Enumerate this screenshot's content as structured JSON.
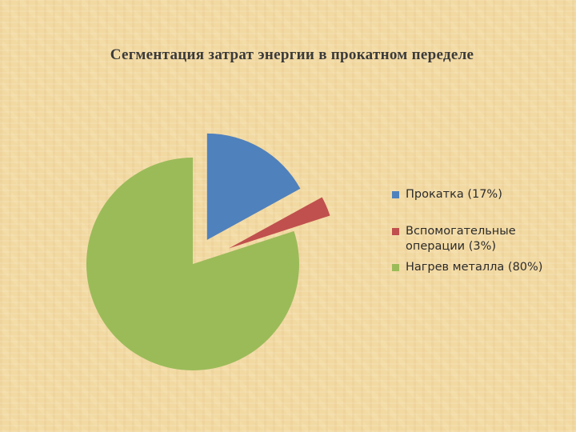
{
  "chart_data": {
    "type": "pie",
    "title": "Сегментация затрат энергии в прокатном переделе",
    "slices": [
      {
        "label": "Прокатка (17%)",
        "value": 17,
        "color": "#4f81bd"
      },
      {
        "label": "Вспомогательные операции (3%)",
        "value": 3,
        "color": "#c0504d"
      },
      {
        "label": "Нагрев металла (80%)",
        "value": 80,
        "color": "#9bbb59"
      }
    ],
    "legend_position": "right",
    "exploded": true
  }
}
